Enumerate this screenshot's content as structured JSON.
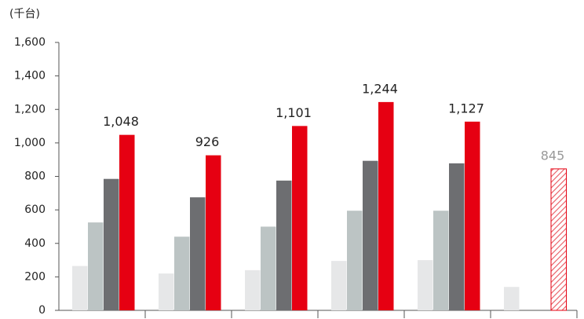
{
  "chart_data": {
    "type": "bar",
    "y_label": "(千台)",
    "categories": [
      null,
      null,
      null,
      null,
      null,
      null
    ],
    "series": [
      {
        "color": "#e6e7e8",
        "values": [
          265,
          220,
          240,
          295,
          300,
          140
        ]
      },
      {
        "color": "#bcc4c4",
        "values": [
          525,
          440,
          500,
          595,
          595,
          null
        ]
      },
      {
        "color": "#6d6e71",
        "values": [
          785,
          675,
          775,
          893,
          878,
          null
        ]
      },
      {
        "color": "#e60012",
        "values": [
          1048,
          926,
          1101,
          1244,
          1127,
          845
        ],
        "value_labels": [
          "1,048",
          "926",
          "1,101",
          "1,244",
          "1,127",
          "845"
        ],
        "hatched": [
          false,
          false,
          false,
          false,
          false,
          true
        ]
      }
    ],
    "ylim": [
      0,
      1600
    ],
    "yticks": [
      0,
      200,
      400,
      600,
      800,
      {
        "value": 1000,
        "label": "1,000"
      },
      {
        "value": 1200,
        "label": "1,200"
      },
      {
        "value": 1400,
        "label": "1,400"
      },
      {
        "value": 1600,
        "label": "1,600"
      }
    ],
    "grid": false
  }
}
